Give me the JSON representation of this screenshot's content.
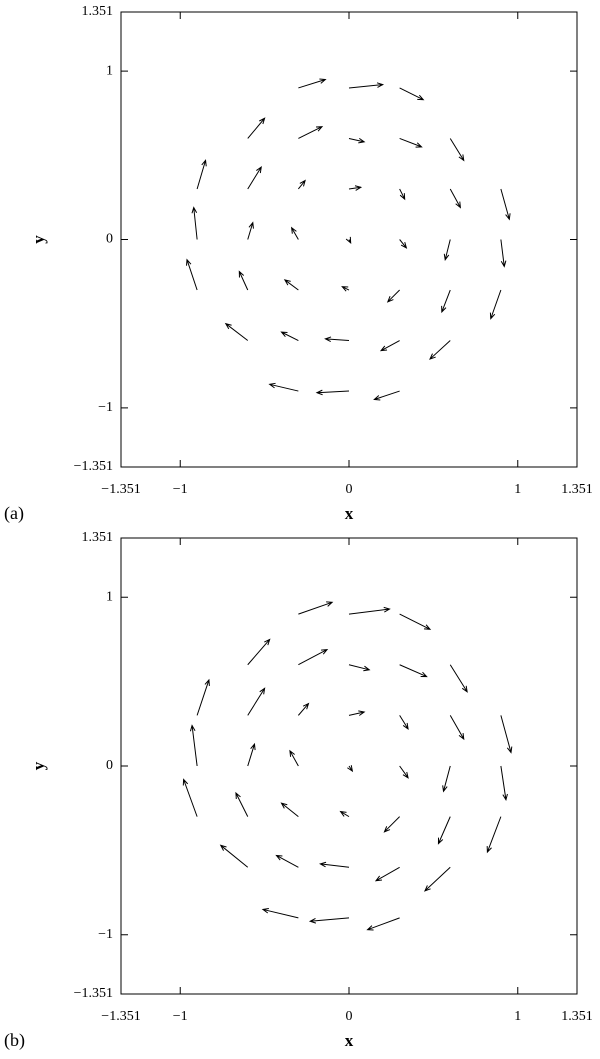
{
  "chart_data": [
    {
      "type": "quiver",
      "panel_label": "(a)",
      "xlabel": "x",
      "ylabel": "y",
      "color": "#000000",
      "xlim": [
        -1.351,
        1.351
      ],
      "ylim": [
        -1.351,
        1.351
      ],
      "xticks": [
        {
          "value": -1.351,
          "label": "−1.351"
        },
        {
          "value": -1,
          "label": "−1"
        },
        0,
        1,
        1.351
      ],
      "yticks": [
        {
          "value": -1.351,
          "label": "−1.351"
        },
        {
          "value": -1,
          "label": "−1"
        },
        0,
        1,
        1.351
      ],
      "x": [
        -0.3,
        0,
        0.3,
        -0.6,
        -0.3,
        0,
        0.3,
        0.6,
        -0.9,
        -0.6,
        -0.3,
        0,
        0.3,
        0.6,
        0.9,
        -0.9,
        -0.6,
        -0.3,
        0,
        0.3,
        0.6,
        0.9,
        -0.9,
        -0.6,
        -0.3,
        0,
        0.3,
        0.6,
        0.9,
        -0.6,
        -0.3,
        0,
        0.3,
        0.6,
        -0.3,
        0,
        0.3
      ],
      "y": [
        0.9,
        0.9,
        0.9,
        0.6,
        0.6,
        0.6,
        0.6,
        0.6,
        0.3,
        0.3,
        0.3,
        0.3,
        0.3,
        0.3,
        0.3,
        0,
        0,
        0,
        0,
        0,
        0,
        0,
        -0.3,
        -0.3,
        -0.3,
        -0.3,
        -0.3,
        -0.3,
        -0.3,
        -0.6,
        -0.6,
        -0.6,
        -0.6,
        -0.6,
        -0.9,
        -0.9,
        -0.9
      ],
      "u": [
        0.16,
        0.2,
        0.14,
        0.1,
        0.14,
        0.09,
        0.13,
        0.08,
        0.05,
        0.08,
        0.04,
        0.07,
        0.03,
        0.06,
        0.05,
        -0.02,
        0.03,
        -0.04,
        0.01,
        0.04,
        -0.03,
        0.02,
        -0.06,
        -0.05,
        -0.08,
        -0.04,
        -0.07,
        -0.05,
        -0.06,
        -0.13,
        -0.1,
        -0.14,
        -0.11,
        -0.12,
        -0.17,
        -0.19,
        -0.15
      ],
      "v": [
        0.05,
        0.02,
        -0.07,
        0.12,
        0.07,
        -0.02,
        -0.05,
        -0.13,
        0.17,
        0.13,
        0.05,
        0.01,
        -0.06,
        -0.11,
        -0.18,
        0.19,
        0.1,
        0.07,
        -0.02,
        -0.05,
        -0.12,
        -0.16,
        0.18,
        0.11,
        0.06,
        0.02,
        -0.07,
        -0.13,
        -0.17,
        0.1,
        0.05,
        0.01,
        -0.06,
        -0.11,
        0.04,
        -0.01,
        -0.05
      ]
    },
    {
      "type": "quiver",
      "panel_label": "(b)",
      "xlabel": "x",
      "ylabel": "y",
      "color": "#000000",
      "xlim": [
        -1.351,
        1.351
      ],
      "ylim": [
        -1.351,
        1.351
      ],
      "xticks": [
        {
          "value": -1.351,
          "label": "−1.351"
        },
        {
          "value": -1,
          "label": "−1"
        },
        0,
        1,
        1.351
      ],
      "yticks": [
        {
          "value": -1.351,
          "label": "−1.351"
        },
        {
          "value": -1,
          "label": "−1"
        },
        0,
        1,
        1.351
      ],
      "x": [
        -0.3,
        0,
        0.3,
        -0.6,
        -0.3,
        0,
        0.3,
        0.6,
        -0.9,
        -0.6,
        -0.3,
        0,
        0.3,
        0.6,
        0.9,
        -0.9,
        -0.6,
        -0.3,
        0,
        0.3,
        0.6,
        0.9,
        -0.9,
        -0.6,
        -0.3,
        0,
        0.3,
        0.6,
        0.9,
        -0.6,
        -0.3,
        0,
        0.3,
        0.6,
        -0.3,
        0,
        0.3
      ],
      "y": [
        0.9,
        0.9,
        0.9,
        0.6,
        0.6,
        0.6,
        0.6,
        0.6,
        0.3,
        0.3,
        0.3,
        0.3,
        0.3,
        0.3,
        0.3,
        0,
        0,
        0,
        0,
        0,
        0,
        0,
        -0.3,
        -0.3,
        -0.3,
        -0.3,
        -0.3,
        -0.3,
        -0.3,
        -0.6,
        -0.6,
        -0.6,
        -0.6,
        -0.6,
        -0.9,
        -0.9,
        -0.9
      ],
      "u": [
        0.2,
        0.24,
        0.18,
        0.13,
        0.17,
        0.12,
        0.16,
        0.1,
        0.07,
        0.1,
        0.06,
        0.09,
        0.05,
        0.08,
        0.06,
        -0.03,
        0.04,
        -0.05,
        0.02,
        0.05,
        -0.04,
        0.03,
        -0.08,
        -0.07,
        -0.1,
        -0.05,
        -0.09,
        -0.07,
        -0.08,
        -0.16,
        -0.13,
        -0.17,
        -0.14,
        -0.15,
        -0.21,
        -0.23,
        -0.19
      ],
      "v": [
        0.07,
        0.03,
        -0.09,
        0.15,
        0.09,
        -0.03,
        -0.07,
        -0.16,
        0.21,
        0.16,
        0.07,
        0.02,
        -0.08,
        -0.14,
        -0.22,
        0.24,
        0.13,
        0.09,
        -0.03,
        -0.07,
        -0.15,
        -0.2,
        0.22,
        0.14,
        0.08,
        0.03,
        -0.09,
        -0.16,
        -0.21,
        0.13,
        0.07,
        0.02,
        -0.08,
        -0.14,
        0.05,
        -0.02,
        -0.07
      ]
    }
  ]
}
